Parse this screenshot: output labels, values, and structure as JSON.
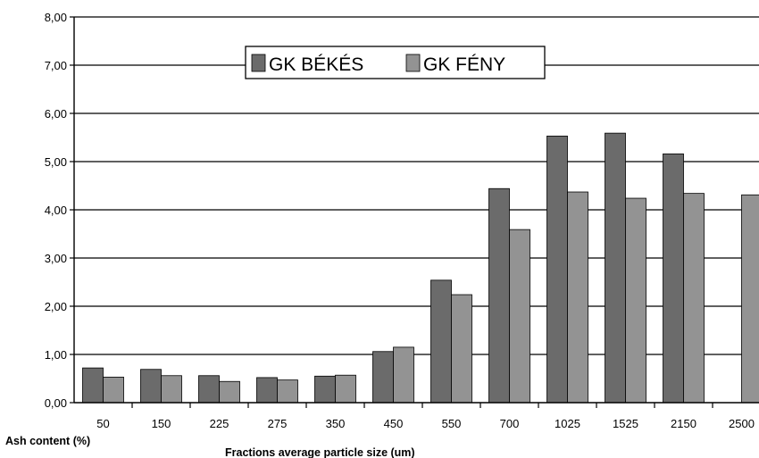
{
  "chart_data": {
    "type": "bar",
    "title": "",
    "xlabel": "Fractions average particle size (um)",
    "ylabel": "Ash content (%)",
    "categories": [
      "50",
      "150",
      "225",
      "275",
      "350",
      "450",
      "550",
      "700",
      "1025",
      "1525",
      "2150",
      "2500"
    ],
    "series": [
      {
        "name": "GK BÉKÉS",
        "color": "#6b6b6b",
        "values": [
          0.72,
          0.69,
          0.56,
          0.52,
          0.55,
          1.06,
          2.54,
          4.44,
          5.53,
          5.59,
          5.16,
          null
        ]
      },
      {
        "name": "GK FÉNY",
        "color": "#939393",
        "values": [
          0.53,
          0.56,
          0.44,
          0.47,
          0.57,
          1.15,
          2.24,
          3.59,
          4.37,
          4.24,
          4.34,
          4.31
        ]
      }
    ],
    "ylim": [
      0,
      8
    ],
    "yticks": [
      "0,00",
      "1,00",
      "2,00",
      "3,00",
      "4,00",
      "5,00",
      "6,00",
      "7,00",
      "8,00"
    ],
    "grid": true,
    "legend_position": "top-center"
  }
}
